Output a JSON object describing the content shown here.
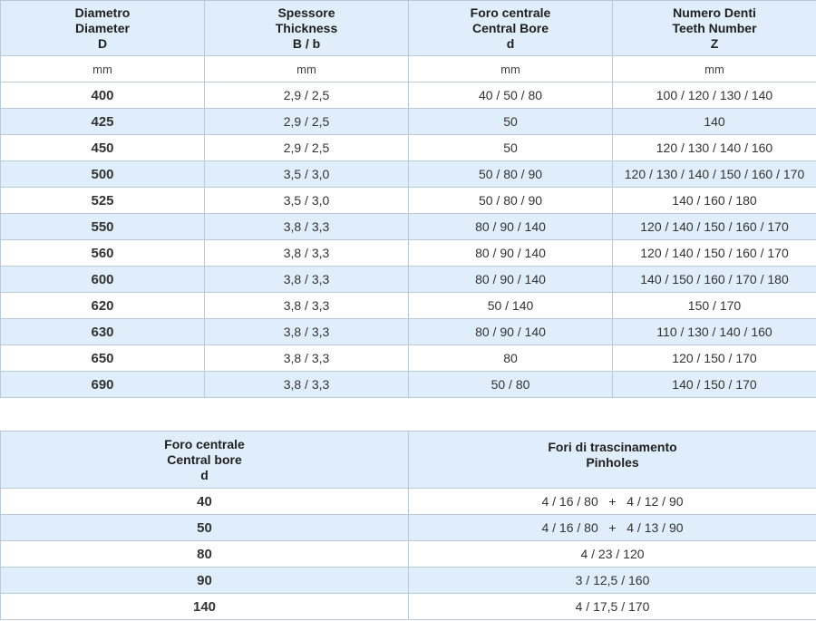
{
  "table1": {
    "headers": [
      {
        "lines": [
          "Diametro",
          "Diameter",
          "D"
        ]
      },
      {
        "lines": [
          "Spessore",
          "Thickness",
          "B / b"
        ]
      },
      {
        "lines": [
          "Foro centrale",
          "Central Bore",
          "d"
        ]
      },
      {
        "lines": [
          "Numero Denti",
          "Teeth Number",
          "Z"
        ]
      }
    ],
    "units": [
      "mm",
      "mm",
      "mm",
      "mm"
    ],
    "rows": [
      [
        "400",
        "2,9 / 2,5",
        "40 / 50 / 80",
        "100 / 120 / 130 / 140"
      ],
      [
        "425",
        "2,9 / 2,5",
        "50",
        "140"
      ],
      [
        "450",
        "2,9 / 2,5",
        "50",
        "120 / 130 / 140 / 160"
      ],
      [
        "500",
        "3,5 / 3,0",
        "50 / 80 / 90",
        "120 / 130 / 140 / 150 / 160 / 170"
      ],
      [
        "525",
        "3,5 / 3,0",
        "50 / 80 / 90",
        "140 / 160 / 180"
      ],
      [
        "550",
        "3,8 / 3,3",
        "80 / 90 / 140",
        "120 / 140 / 150 / 160 / 170"
      ],
      [
        "560",
        "3,8 / 3,3",
        "80 / 90 / 140",
        "120 / 140 / 150 / 160 / 170"
      ],
      [
        "600",
        "3,8 / 3,3",
        "80 / 90 / 140",
        "140 / 150 / 160 / 170 / 180"
      ],
      [
        "620",
        "3,8 / 3,3",
        "50 / 140",
        "150 / 170"
      ],
      [
        "630",
        "3,8 / 3,3",
        "80 / 90 / 140",
        "110 / 130 / 140 / 160"
      ],
      [
        "650",
        "3,8 / 3,3",
        "80",
        "120 / 150 / 170"
      ],
      [
        "690",
        "3,8 / 3,3",
        "50 / 80",
        "140 / 150 / 170"
      ]
    ]
  },
  "table2": {
    "headers": [
      {
        "lines": [
          "Foro centrale",
          "Central bore",
          "d"
        ]
      },
      {
        "lines": [
          "Fori di trascinamento",
          "Pinholes"
        ]
      }
    ],
    "rows": [
      [
        "40",
        "4 / 16 / 80   +   4 / 12 / 90"
      ],
      [
        "50",
        "4 / 16 / 80   +   4 / 13 / 90"
      ],
      [
        "80",
        "4 / 23 / 120"
      ],
      [
        "90",
        "3 / 12,5 / 160"
      ],
      [
        "140",
        "4 / 17,5 / 170"
      ]
    ]
  },
  "colors": {
    "header_bg": "#dfeefa",
    "alt_row_bg": "#dfeefa",
    "border": "#b9c9d8"
  }
}
